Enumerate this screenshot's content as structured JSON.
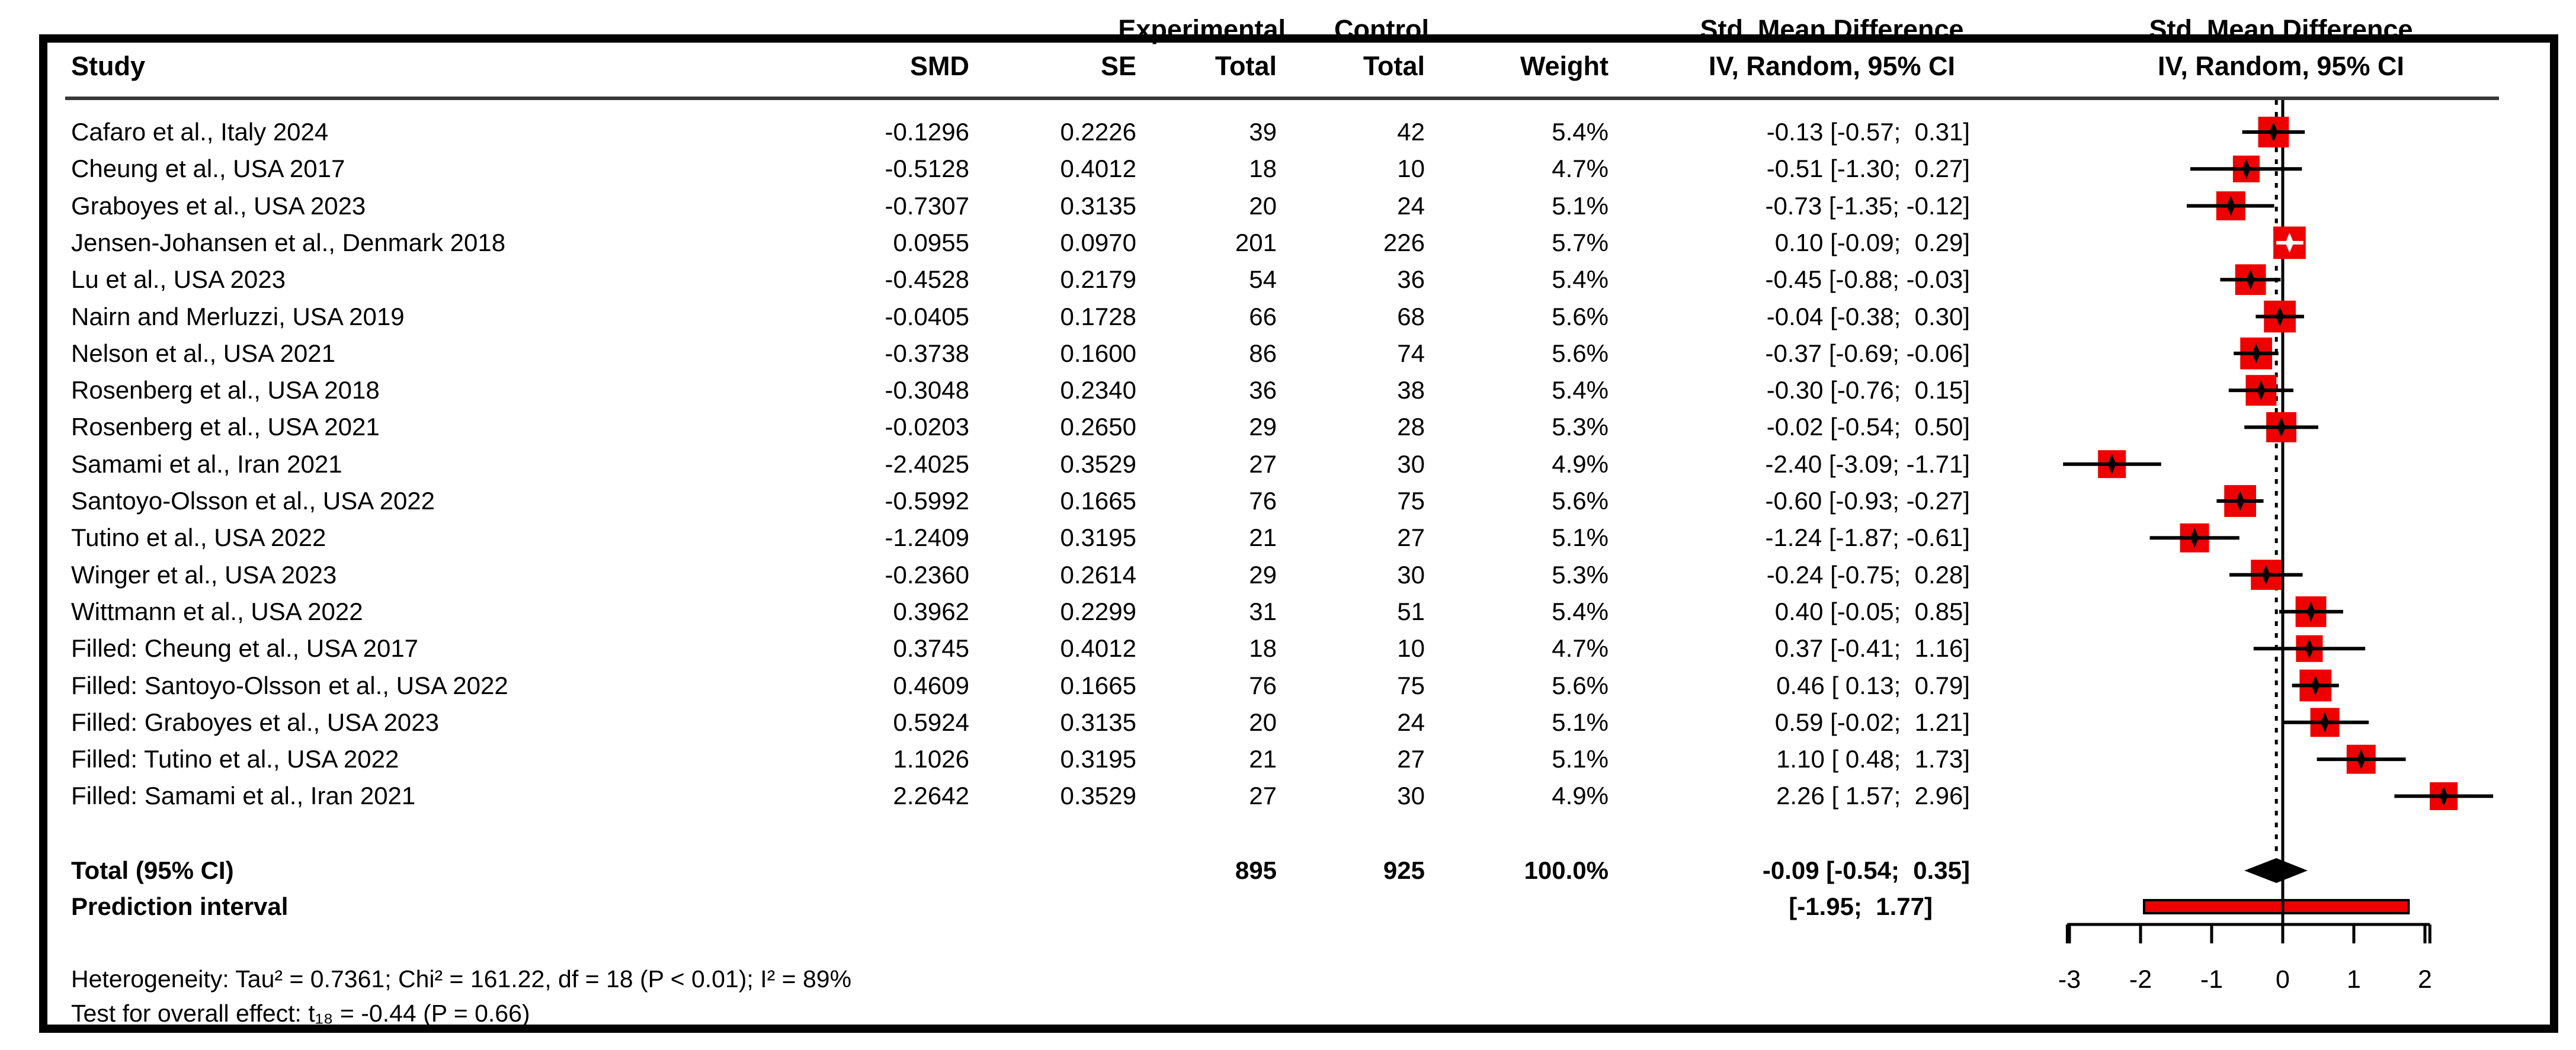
{
  "header": {
    "study": "Study",
    "smd": "SMD",
    "se": "SE",
    "group_experimental": "Experimental",
    "group_control": "Control",
    "total": "Total",
    "weight": "Weight",
    "effect_line1": "Std. Mean Difference",
    "effect_line2": "IV, Random, 95% CI"
  },
  "total_row": {
    "label": "Total (95% CI)",
    "n1": "895",
    "n2": "925",
    "weight": "100.0%",
    "ci": "-0.09 [-0.54;  0.35]"
  },
  "prediction_row": {
    "label": "Prediction interval",
    "ci": "[-1.95;  1.77]"
  },
  "footnotes": {
    "heterogeneity": "Heterogeneity: Tau² = 0.7361; Chi² = 161.22, df = 18 (P < 0.01); I² = 89%",
    "overall_effect": "Test for overall effect: t₁₈ = -0.44 (P = 0.66)"
  },
  "chart_data": {
    "type": "forest",
    "x_ticks": [
      -3,
      -2,
      -1,
      0,
      1,
      2
    ],
    "x_axis_range": [
      -3.03,
      2.07
    ],
    "zero_line": 0,
    "pooled_line": -0.09,
    "colors": {
      "square": "#ee0000",
      "ci_line": "#000000",
      "diamond": "#000000",
      "prediction_fill": "#ee0000",
      "rule": "#383838"
    },
    "studies": [
      {
        "study": "Cafaro et al., Italy 2024",
        "smd": "-0.1296",
        "se": "0.2226",
        "n1": "39",
        "n2": "42",
        "weight": "5.4%",
        "w": 5.4,
        "est": -0.1296,
        "lo": -0.57,
        "hi": 0.31,
        "ci": "-0.13 [-0.57;  0.31]"
      },
      {
        "study": "Cheung et al., USA 2017",
        "smd": "-0.5128",
        "se": "0.4012",
        "n1": "18",
        "n2": "10",
        "weight": "4.7%",
        "w": 4.7,
        "est": -0.5128,
        "lo": -1.3,
        "hi": 0.27,
        "ci": "-0.51 [-1.30;  0.27]"
      },
      {
        "study": "Graboyes et al., USA 2023",
        "smd": "-0.7307",
        "se": "0.3135",
        "n1": "20",
        "n2": "24",
        "weight": "5.1%",
        "w": 5.1,
        "est": -0.7307,
        "lo": -1.35,
        "hi": -0.12,
        "ci": "-0.73 [-1.35; -0.12]"
      },
      {
        "study": "Jensen-Johansen et al., Denmark 2018",
        "smd": "0.0955",
        "se": "0.0970",
        "n1": "201",
        "n2": "226",
        "weight": "5.7%",
        "w": 5.7,
        "est": 0.0955,
        "lo": -0.09,
        "hi": 0.29,
        "ci": " 0.10 [-0.09;  0.29]",
        "ci_inside": true
      },
      {
        "study": "Lu et al., USA 2023",
        "smd": "-0.4528",
        "se": "0.2179",
        "n1": "54",
        "n2": "36",
        "weight": "5.4%",
        "w": 5.4,
        "est": -0.4528,
        "lo": -0.88,
        "hi": -0.03,
        "ci": "-0.45 [-0.88; -0.03]"
      },
      {
        "study": "Nairn and Merluzzi, USA 2019",
        "smd": "-0.0405",
        "se": "0.1728",
        "n1": "66",
        "n2": "68",
        "weight": "5.6%",
        "w": 5.6,
        "est": -0.0405,
        "lo": -0.38,
        "hi": 0.3,
        "ci": "-0.04 [-0.38;  0.30]"
      },
      {
        "study": "Nelson et al., USA 2021",
        "smd": "-0.3738",
        "se": "0.1600",
        "n1": "86",
        "n2": "74",
        "weight": "5.6%",
        "w": 5.6,
        "est": -0.3738,
        "lo": -0.69,
        "hi": -0.06,
        "ci": "-0.37 [-0.69; -0.06]"
      },
      {
        "study": "Rosenberg et al., USA 2018",
        "smd": "-0.3048",
        "se": "0.2340",
        "n1": "36",
        "n2": "38",
        "weight": "5.4%",
        "w": 5.4,
        "est": -0.3048,
        "lo": -0.76,
        "hi": 0.15,
        "ci": "-0.30 [-0.76;  0.15]"
      },
      {
        "study": "Rosenberg et al., USA 2021",
        "smd": "-0.0203",
        "se": "0.2650",
        "n1": "29",
        "n2": "28",
        "weight": "5.3%",
        "w": 5.3,
        "est": -0.0203,
        "lo": -0.54,
        "hi": 0.5,
        "ci": "-0.02 [-0.54;  0.50]"
      },
      {
        "study": "Samami et al., Iran 2021",
        "smd": "-2.4025",
        "se": "0.3529",
        "n1": "27",
        "n2": "30",
        "weight": "4.9%",
        "w": 4.9,
        "est": -2.4025,
        "lo": -3.09,
        "hi": -1.71,
        "ci": "-2.40 [-3.09; -1.71]"
      },
      {
        "study": "Santoyo-Olsson et al., USA 2022",
        "smd": "-0.5992",
        "se": "0.1665",
        "n1": "76",
        "n2": "75",
        "weight": "5.6%",
        "w": 5.6,
        "est": -0.5992,
        "lo": -0.93,
        "hi": -0.27,
        "ci": "-0.60 [-0.93; -0.27]"
      },
      {
        "study": "Tutino et al., USA 2022",
        "smd": "-1.2409",
        "se": "0.3195",
        "n1": "21",
        "n2": "27",
        "weight": "5.1%",
        "w": 5.1,
        "est": -1.2409,
        "lo": -1.87,
        "hi": -0.61,
        "ci": "-1.24 [-1.87; -0.61]"
      },
      {
        "study": "Winger et al., USA 2023",
        "smd": "-0.2360",
        "se": "0.2614",
        "n1": "29",
        "n2": "30",
        "weight": "5.3%",
        "w": 5.3,
        "est": -0.236,
        "lo": -0.75,
        "hi": 0.28,
        "ci": "-0.24 [-0.75;  0.28]"
      },
      {
        "study": "Wittmann et al., USA 2022",
        "smd": "0.3962",
        "se": "0.2299",
        "n1": "31",
        "n2": "51",
        "weight": "5.4%",
        "w": 5.4,
        "est": 0.3962,
        "lo": -0.05,
        "hi": 0.85,
        "ci": " 0.40 [-0.05;  0.85]"
      },
      {
        "study": "Filled: Cheung et al., USA 2017",
        "smd": "0.3745",
        "se": "0.4012",
        "n1": "18",
        "n2": "10",
        "weight": "4.7%",
        "w": 4.7,
        "est": 0.3745,
        "lo": -0.41,
        "hi": 1.16,
        "ci": " 0.37 [-0.41;  1.16]"
      },
      {
        "study": "Filled: Santoyo-Olsson et al., USA 2022",
        "smd": "0.4609",
        "se": "0.1665",
        "n1": "76",
        "n2": "75",
        "weight": "5.6%",
        "w": 5.6,
        "est": 0.4609,
        "lo": 0.13,
        "hi": 0.79,
        "ci": " 0.46 [ 0.13;  0.79]"
      },
      {
        "study": "Filled: Graboyes et al., USA 2023",
        "smd": "0.5924",
        "se": "0.3135",
        "n1": "20",
        "n2": "24",
        "weight": "5.1%",
        "w": 5.1,
        "est": 0.5924,
        "lo": -0.02,
        "hi": 1.21,
        "ci": " 0.59 [-0.02;  1.21]"
      },
      {
        "study": "Filled: Tutino et al., USA 2022",
        "smd": "1.1026",
        "se": "0.3195",
        "n1": "21",
        "n2": "27",
        "weight": "5.1%",
        "w": 5.1,
        "est": 1.1026,
        "lo": 0.48,
        "hi": 1.73,
        "ci": " 1.10 [ 0.48;  1.73]"
      },
      {
        "study": "Filled: Samami et al., Iran 2021",
        "smd": "2.2642",
        "se": "0.3529",
        "n1": "27",
        "n2": "30",
        "weight": "4.9%",
        "w": 4.9,
        "est": 2.2642,
        "lo": 1.57,
        "hi": 2.96,
        "ci": " 2.26 [ 1.57;  2.96]"
      }
    ],
    "total": {
      "est": -0.09,
      "lo": -0.54,
      "hi": 0.35
    },
    "prediction": {
      "lo": -1.95,
      "hi": 1.77
    }
  }
}
